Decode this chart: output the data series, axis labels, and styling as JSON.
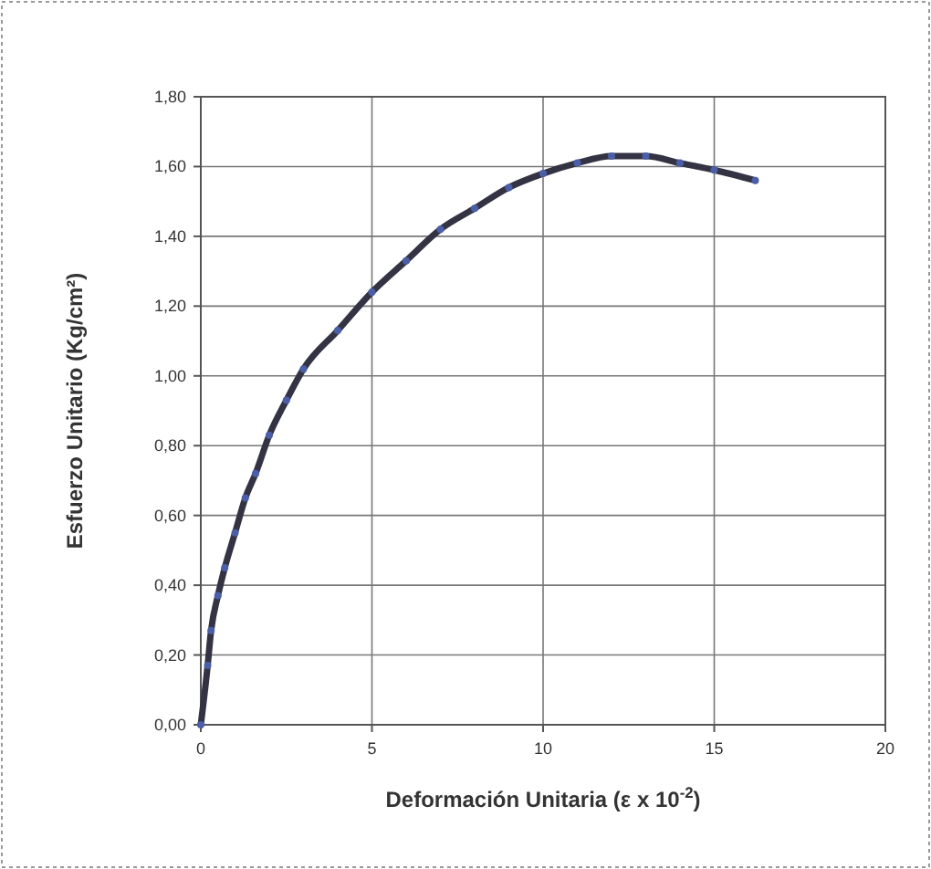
{
  "chart_data": {
    "type": "line",
    "xlabel": "Deformación Unitaria (ε x 10$^{-2}$)",
    "ylabel": "Esfuerzo Unitario (Kg/cm²)",
    "x": [
      0,
      0.2,
      0.3,
      0.5,
      0.7,
      1,
      1.3,
      1.6,
      2,
      2.5,
      3,
      4,
      5,
      6,
      7,
      8,
      9,
      10,
      11,
      12,
      13,
      14,
      15,
      16.2
    ],
    "series": [
      {
        "color": "#333344",
        "values": [
          0,
          0.17,
          0.27,
          0.37,
          0.45,
          0.55,
          0.65,
          0.72,
          0.83,
          0.93,
          1.02,
          1.13,
          1.24,
          1.33,
          1.42,
          1.48,
          1.54,
          1.58,
          1.61,
          1.63,
          1.63,
          1.61,
          1.59,
          1.56
        ]
      }
    ],
    "xlim": [
      0,
      20
    ],
    "xticks": [
      0,
      5,
      10,
      15,
      20
    ],
    "ylim": [
      0,
      1.8
    ],
    "yticks": [
      {
        "value": 0,
        "label": "0,00"
      },
      {
        "value": 0.2,
        "label": "0,20"
      },
      {
        "value": 0.4,
        "label": "0,40"
      },
      {
        "value": 0.6,
        "label": "0,60"
      },
      {
        "value": 0.8,
        "label": "0,80"
      },
      {
        "value": 1,
        "label": "1,00"
      },
      {
        "value": 1.2,
        "label": "1,20"
      },
      {
        "value": 1.4,
        "label": "1,40"
      },
      {
        "value": 1.6,
        "label": "1,60"
      },
      {
        "value": 1.8,
        "label": "1,80"
      }
    ],
    "grid": true,
    "marker": "circle",
    "line_style": "solid"
  }
}
